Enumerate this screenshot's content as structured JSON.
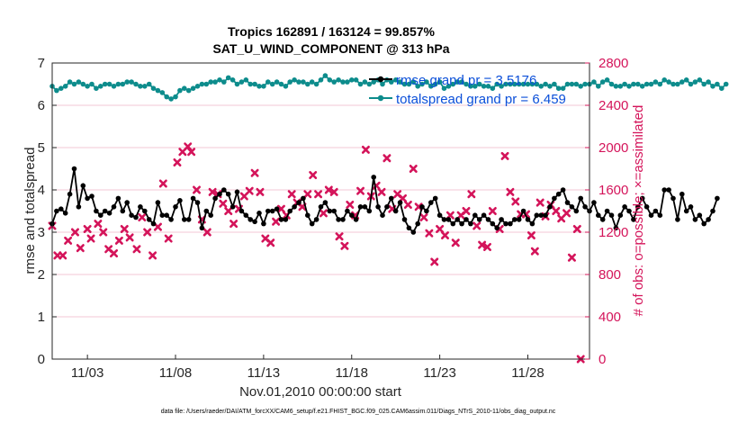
{
  "chart_data": {
    "type": "line",
    "title_line1": "Tropics 162891 / 163124 = 99.857%",
    "title_line2": "SAT_U_WIND_COMPONENT @ 313 hPa",
    "xlabel": "Nov.01,2010 00:00:00 start",
    "ylabel": "rmse and totalspread",
    "ylabel_right": "# of obs: o=possible; ×=assimilated",
    "xlim": [
      1,
      31.5
    ],
    "ylim": [
      0,
      7
    ],
    "ylim_right": [
      0,
      2800
    ],
    "x_ticks": [
      3,
      8,
      13,
      18,
      23,
      28
    ],
    "x_tick_labels": [
      "11/03",
      "11/08",
      "11/13",
      "11/18",
      "11/23",
      "11/28"
    ],
    "y_ticks": [
      0,
      1,
      2,
      3,
      4,
      5,
      6,
      7
    ],
    "y_tick_labels": [
      "0",
      "1",
      "2",
      "3",
      "4",
      "5",
      "6",
      "7"
    ],
    "y_ticks_right": [
      0,
      400,
      800,
      1200,
      1600,
      2000,
      2400,
      2800
    ],
    "y_tick_labels_right": [
      "0",
      "400",
      "800",
      "1200",
      "1600",
      "2000",
      "2400",
      "2800"
    ],
    "series": [
      {
        "name": "rmse",
        "legend": "rmse grand pr = 3.5176",
        "color": "#000000",
        "marker": "circle",
        "x_start": 1.0,
        "x_step": 0.25,
        "values": [
          3.2,
          3.5,
          3.55,
          3.45,
          3.9,
          4.5,
          3.6,
          4.1,
          3.8,
          3.85,
          3.5,
          3.4,
          3.5,
          3.45,
          3.6,
          3.8,
          3.5,
          3.7,
          3.4,
          3.35,
          3.6,
          3.5,
          3.3,
          3.2,
          3.7,
          3.4,
          3.4,
          3.3,
          3.6,
          3.75,
          3.3,
          3.3,
          3.8,
          3.7,
          3.1,
          3.5,
          3.4,
          3.8,
          3.9,
          4.0,
          3.9,
          3.6,
          3.95,
          3.5,
          3.4,
          3.3,
          3.25,
          3.45,
          3.2,
          3.5,
          3.5,
          3.55,
          3.3,
          3.3,
          3.5,
          3.6,
          3.7,
          3.8,
          3.4,
          3.2,
          3.3,
          3.6,
          3.7,
          3.5,
          3.5,
          3.3,
          3.3,
          3.5,
          3.4,
          3.3,
          3.6,
          3.6,
          3.5,
          4.3,
          3.6,
          3.4,
          3.6,
          3.8,
          3.5,
          3.7,
          3.3,
          3.1,
          3.0,
          3.2,
          3.6,
          3.5,
          3.7,
          3.8,
          3.4,
          3.3,
          3.3,
          3.2,
          3.3,
          3.2,
          3.3,
          3.2,
          3.4,
          3.3,
          3.4,
          3.3,
          3.2,
          3.1,
          3.3,
          3.2,
          3.2,
          3.3,
          3.3,
          3.5,
          3.3,
          3.2,
          3.4,
          3.4,
          3.4,
          3.6,
          3.8,
          3.9,
          4.0,
          3.7,
          3.6,
          3.5,
          3.8,
          3.6,
          3.5,
          3.7,
          3.4,
          3.3,
          3.5,
          3.4,
          3.1,
          3.4,
          3.6,
          3.5,
          3.3,
          3.6,
          3.8,
          3.6,
          3.4,
          3.5,
          3.4,
          4.0,
          4.0,
          3.8,
          3.3,
          3.9,
          3.5,
          3.6,
          3.3,
          3.4,
          3.2,
          3.3,
          3.5,
          3.8
        ]
      },
      {
        "name": "totalspread",
        "legend": "totalspread grand pr = 6.459",
        "color": "#0d8c8c",
        "marker": "circle",
        "x_start": 1.0,
        "x_step": 0.25,
        "values": [
          6.45,
          6.35,
          6.4,
          6.45,
          6.55,
          6.5,
          6.55,
          6.5,
          6.45,
          6.5,
          6.4,
          6.45,
          6.5,
          6.5,
          6.45,
          6.5,
          6.5,
          6.55,
          6.55,
          6.5,
          6.45,
          6.45,
          6.5,
          6.4,
          6.35,
          6.3,
          6.2,
          6.15,
          6.2,
          6.35,
          6.4,
          6.35,
          6.4,
          6.45,
          6.5,
          6.5,
          6.55,
          6.55,
          6.6,
          6.55,
          6.65,
          6.6,
          6.5,
          6.55,
          6.6,
          6.5,
          6.5,
          6.45,
          6.45,
          6.55,
          6.5,
          6.55,
          6.5,
          6.45,
          6.55,
          6.6,
          6.55,
          6.55,
          6.5,
          6.55,
          6.5,
          6.6,
          6.7,
          6.6,
          6.55,
          6.6,
          6.55,
          6.55,
          6.6,
          6.6,
          6.5,
          6.55,
          6.5,
          6.55,
          6.6,
          6.5,
          6.6,
          6.55,
          6.6,
          6.55,
          6.5,
          6.5,
          6.55,
          6.45,
          6.5,
          6.55,
          6.45,
          6.5,
          6.55,
          6.4,
          6.45,
          6.5,
          6.55,
          6.55,
          6.5,
          6.45,
          6.45,
          6.5,
          6.45,
          6.45,
          6.4,
          6.5,
          6.45,
          6.5,
          6.5,
          6.5,
          6.5,
          6.5,
          6.5,
          6.5,
          6.5,
          6.45,
          6.5,
          6.45,
          6.5,
          6.4,
          6.4,
          6.5,
          6.5,
          6.5,
          6.45,
          6.5,
          6.5,
          6.55,
          6.45,
          6.55,
          6.6,
          6.5,
          6.45,
          6.45,
          6.5,
          6.45,
          6.5,
          6.5,
          6.45,
          6.5,
          6.5,
          6.55,
          6.5,
          6.6,
          6.55,
          6.5,
          6.5,
          6.55,
          6.6,
          6.5,
          6.55,
          6.6,
          6.5,
          6.55,
          6.45,
          6.5,
          6.4,
          6.5
        ]
      }
    ],
    "assimilated_counts": [
      {
        "x": 1.0,
        "v": 1260
      },
      {
        "x": 1.3,
        "v": 980
      },
      {
        "x": 1.6,
        "v": 980
      },
      {
        "x": 1.9,
        "v": 1120
      },
      {
        "x": 2.3,
        "v": 1200
      },
      {
        "x": 2.6,
        "v": 1050
      },
      {
        "x": 3.0,
        "v": 1230
      },
      {
        "x": 3.2,
        "v": 1140
      },
      {
        "x": 3.6,
        "v": 1280
      },
      {
        "x": 3.9,
        "v": 1200
      },
      {
        "x": 4.2,
        "v": 1040
      },
      {
        "x": 4.5,
        "v": 1000
      },
      {
        "x": 4.8,
        "v": 1120
      },
      {
        "x": 5.1,
        "v": 1230
      },
      {
        "x": 5.4,
        "v": 1150
      },
      {
        "x": 5.8,
        "v": 1040
      },
      {
        "x": 6.1,
        "v": 1340
      },
      {
        "x": 6.4,
        "v": 1200
      },
      {
        "x": 6.7,
        "v": 980
      },
      {
        "x": 7.0,
        "v": 1250
      },
      {
        "x": 7.3,
        "v": 1660
      },
      {
        "x": 7.6,
        "v": 1140
      },
      {
        "x": 8.1,
        "v": 1860
      },
      {
        "x": 8.4,
        "v": 1960
      },
      {
        "x": 8.7,
        "v": 2010
      },
      {
        "x": 8.9,
        "v": 1960
      },
      {
        "x": 9.2,
        "v": 1600
      },
      {
        "x": 9.5,
        "v": 1320
      },
      {
        "x": 9.8,
        "v": 1200
      },
      {
        "x": 10.1,
        "v": 1580
      },
      {
        "x": 10.4,
        "v": 1560
      },
      {
        "x": 10.7,
        "v": 1470
      },
      {
        "x": 11.0,
        "v": 1400
      },
      {
        "x": 11.3,
        "v": 1280
      },
      {
        "x": 11.6,
        "v": 1420
      },
      {
        "x": 11.9,
        "v": 1540
      },
      {
        "x": 12.2,
        "v": 1590
      },
      {
        "x": 12.5,
        "v": 1760
      },
      {
        "x": 12.8,
        "v": 1580
      },
      {
        "x": 13.1,
        "v": 1140
      },
      {
        "x": 13.4,
        "v": 1100
      },
      {
        "x": 13.7,
        "v": 1300
      },
      {
        "x": 14.0,
        "v": 1420
      },
      {
        "x": 14.3,
        "v": 1360
      },
      {
        "x": 14.6,
        "v": 1560
      },
      {
        "x": 14.9,
        "v": 1480
      },
      {
        "x": 15.2,
        "v": 1440
      },
      {
        "x": 15.5,
        "v": 1560
      },
      {
        "x": 15.8,
        "v": 1740
      },
      {
        "x": 16.1,
        "v": 1560
      },
      {
        "x": 16.4,
        "v": 1380
      },
      {
        "x": 16.7,
        "v": 1600
      },
      {
        "x": 17.0,
        "v": 1580
      },
      {
        "x": 17.3,
        "v": 1160
      },
      {
        "x": 17.6,
        "v": 1070
      },
      {
        "x": 17.9,
        "v": 1460
      },
      {
        "x": 18.2,
        "v": 1360
      },
      {
        "x": 18.5,
        "v": 1590
      },
      {
        "x": 18.8,
        "v": 1980
      },
      {
        "x": 19.1,
        "v": 1540
      },
      {
        "x": 19.4,
        "v": 1640
      },
      {
        "x": 19.7,
        "v": 1580
      },
      {
        "x": 20.0,
        "v": 1900
      },
      {
        "x": 20.3,
        "v": 1420
      },
      {
        "x": 20.6,
        "v": 1560
      },
      {
        "x": 20.9,
        "v": 1520
      },
      {
        "x": 21.2,
        "v": 1460
      },
      {
        "x": 21.5,
        "v": 1800
      },
      {
        "x": 21.8,
        "v": 1440
      },
      {
        "x": 22.1,
        "v": 1340
      },
      {
        "x": 22.4,
        "v": 1190
      },
      {
        "x": 22.7,
        "v": 920
      },
      {
        "x": 23.0,
        "v": 1230
      },
      {
        "x": 23.3,
        "v": 1170
      },
      {
        "x": 23.6,
        "v": 1360
      },
      {
        "x": 23.9,
        "v": 1100
      },
      {
        "x": 24.2,
        "v": 1360
      },
      {
        "x": 24.5,
        "v": 1400
      },
      {
        "x": 24.8,
        "v": 1560
      },
      {
        "x": 25.1,
        "v": 1260
      },
      {
        "x": 25.4,
        "v": 1080
      },
      {
        "x": 25.7,
        "v": 1060
      },
      {
        "x": 26.0,
        "v": 1400
      },
      {
        "x": 26.4,
        "v": 1230
      },
      {
        "x": 26.7,
        "v": 1920
      },
      {
        "x": 27.0,
        "v": 1580
      },
      {
        "x": 27.3,
        "v": 1490
      },
      {
        "x": 27.6,
        "v": 1370
      },
      {
        "x": 27.9,
        "v": 1370
      },
      {
        "x": 28.2,
        "v": 1170
      },
      {
        "x": 28.4,
        "v": 1020
      },
      {
        "x": 28.7,
        "v": 1480
      },
      {
        "x": 29.0,
        "v": 1350
      },
      {
        "x": 29.3,
        "v": 1460
      },
      {
        "x": 29.6,
        "v": 1400
      },
      {
        "x": 29.9,
        "v": 1330
      },
      {
        "x": 30.2,
        "v": 1380
      },
      {
        "x": 30.5,
        "v": 960
      },
      {
        "x": 30.8,
        "v": 1230
      },
      {
        "x": 31.0,
        "v": 0
      }
    ]
  },
  "footer": "data file: /Users/raeder/DAI/ATM_forcXX/CAM6_setup/f.e21.FHIST_BGC.f09_025.CAM6assim.011/Diags_NTrS_2010-11/obs_diag_output.nc",
  "colors": {
    "rmse": "#000000",
    "spread": "#0d8c8c",
    "counts": "#d4145a",
    "legend_text": "#0b4fd9"
  }
}
